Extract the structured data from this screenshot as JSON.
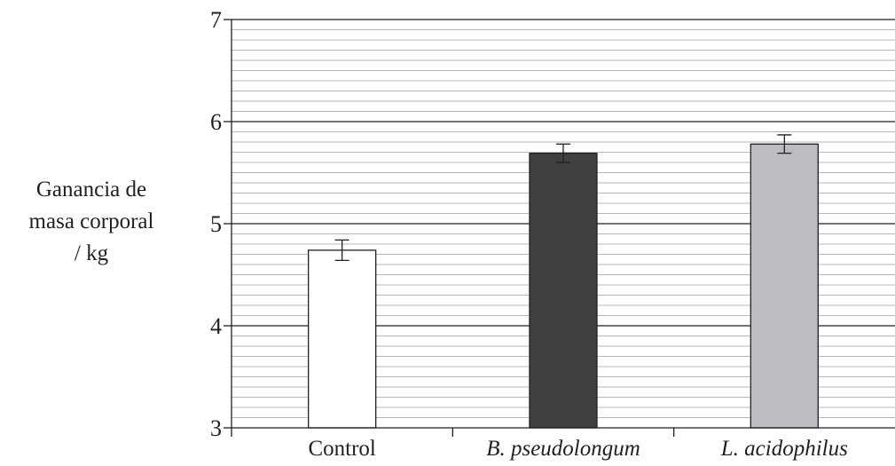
{
  "chart_data": {
    "type": "bar",
    "title": "",
    "xlabel": "",
    "ylabel_lines": [
      "Ganancia de",
      "masa corporal",
      "/ kg"
    ],
    "categories": [
      "Control",
      "B. pseudolongum",
      "L. acidophilus"
    ],
    "category_italic": [
      false,
      true,
      true
    ],
    "values": [
      4.74,
      5.69,
      5.78
    ],
    "error": [
      0.1,
      0.09,
      0.09
    ],
    "colors": [
      "#ffffff",
      "#404040",
      "#bcbdc0"
    ],
    "ylim": [
      3,
      7
    ],
    "yticks": [
      "3",
      "4",
      "5",
      "6",
      "7"
    ],
    "major_grid_step": 1,
    "minor_grid_step": 0.1,
    "grid": true
  }
}
